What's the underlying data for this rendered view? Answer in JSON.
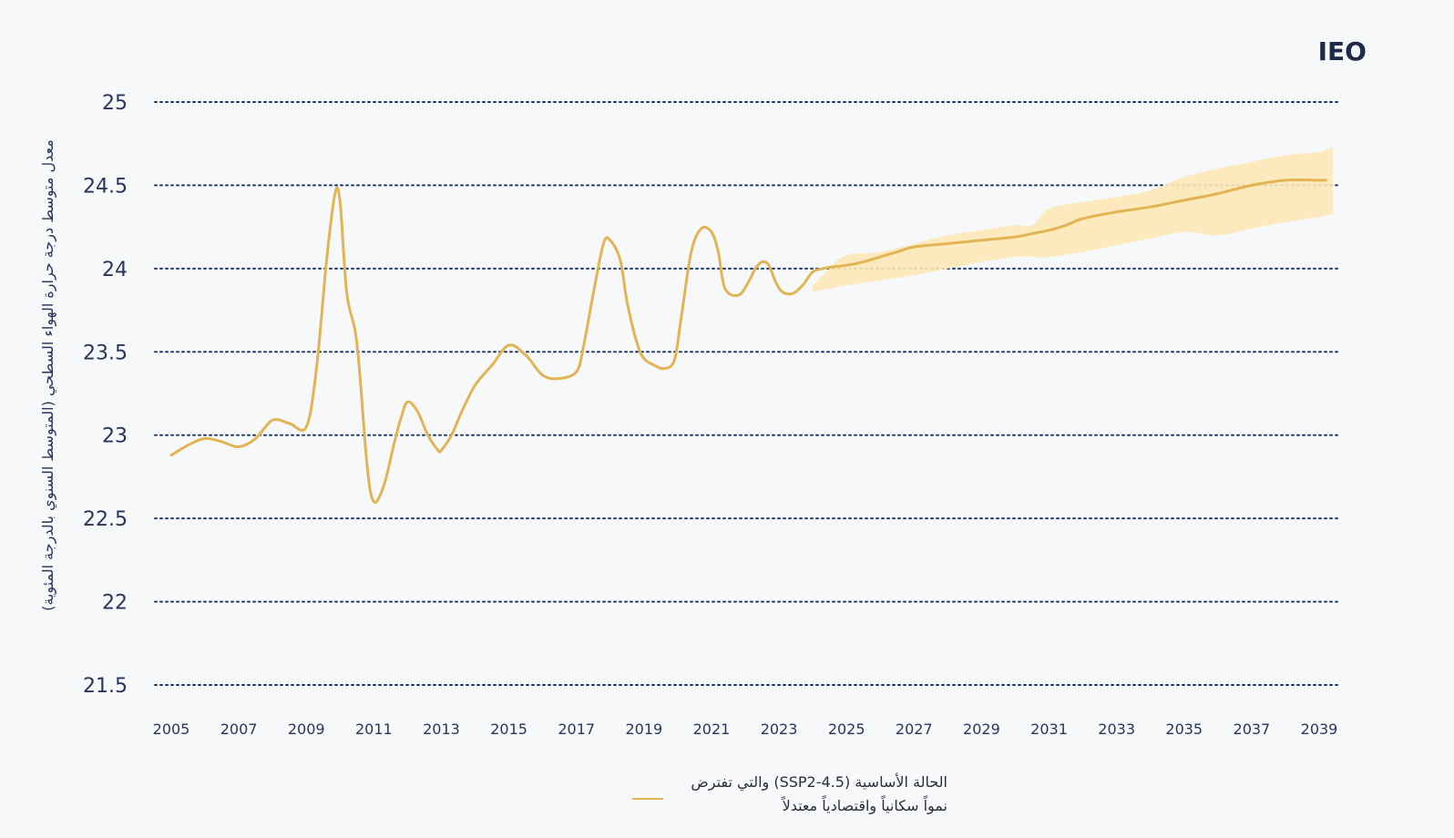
{
  "brand": "IEO",
  "legend": {
    "line1": "الحالة الأساسية (SSP2-4.5) والتي تفترض",
    "line2": "نمواً سكانياً واقتصادياً معتدلاً"
  },
  "colors": {
    "line": "#e2b453",
    "band": "#fde7b6",
    "grid": "#1d3a6e",
    "tick_text": "#27365a",
    "background": "#f6f8fa"
  },
  "chart_data": {
    "type": "line",
    "title": "",
    "xlabel": "",
    "ylabel": "معدل متوسط درجة حرارة الهواء السطحي (المتوسط السنوي بالدرجة المئوية)",
    "xlim": [
      2004.8,
      2039.5
    ],
    "ylim": [
      21.5,
      25
    ],
    "yticks": [
      21.5,
      22,
      22.5,
      23,
      23.5,
      24,
      24.5,
      25
    ],
    "ytick_labels": [
      "21.5",
      "22",
      "22.5",
      "23",
      "23.5",
      "24",
      "24.5",
      "25"
    ],
    "xticks": [
      2005,
      2007,
      2009,
      2011,
      2013,
      2015,
      2017,
      2019,
      2021,
      2023,
      2025,
      2027,
      2029,
      2031,
      2033,
      2035,
      2037,
      2039
    ],
    "xtick_labels": [
      "2005",
      "2007",
      "2009",
      "2011",
      "2013",
      "2015",
      "2017",
      "2019",
      "2021",
      "2023",
      "2025",
      "2027",
      "2029",
      "2031",
      "2033",
      "2035",
      "2037",
      "2039"
    ],
    "grid": "horizontal dotted",
    "legend_position": "bottom",
    "series": [
      {
        "name": "الحالة الأساسية (SSP2-4.5) والتي تفترض نمواً سكانياً واقتصادياً معتدلاً",
        "x": [
          2005,
          2005.5,
          2006,
          2006.5,
          2007,
          2007.5,
          2008,
          2008.5,
          2009,
          2009.3,
          2009.6,
          2009.85,
          2010,
          2010.2,
          2010.5,
          2010.8,
          2011,
          2011.3,
          2011.6,
          2011.8,
          2012,
          2012.3,
          2012.6,
          2012.9,
          2013,
          2013.3,
          2013.6,
          2014,
          2014.5,
          2015,
          2015.5,
          2016,
          2016.5,
          2017,
          2017.2,
          2017.5,
          2017.8,
          2018,
          2018.3,
          2018.5,
          2018.8,
          2019,
          2019.3,
          2019.6,
          2019.9,
          2020.1,
          2020.4,
          2020.7,
          2021,
          2021.2,
          2021.4,
          2021.8,
          2022.1,
          2022.3,
          2022.5,
          2022.7,
          2022.9,
          2023.1,
          2023.4,
          2023.7,
          2024,
          2024.3,
          2024.6,
          2025,
          2025.5,
          2026,
          2026.5,
          2027,
          2028,
          2029,
          2030,
          2030.5,
          2031,
          2031.5,
          2032,
          2033,
          2034,
          2035,
          2036,
          2037,
          2038,
          2039,
          2039.2
        ],
        "y": [
          22.88,
          22.94,
          22.98,
          22.96,
          22.93,
          22.98,
          23.09,
          23.07,
          23.05,
          23.4,
          24.05,
          24.45,
          24.4,
          23.85,
          23.55,
          22.82,
          22.6,
          22.7,
          22.95,
          23.1,
          23.2,
          23.14,
          23.0,
          22.91,
          22.91,
          23.0,
          23.14,
          23.3,
          23.42,
          23.54,
          23.48,
          23.36,
          23.34,
          23.38,
          23.52,
          23.85,
          24.15,
          24.17,
          24.05,
          23.8,
          23.55,
          23.46,
          23.42,
          23.4,
          23.45,
          23.7,
          24.1,
          24.24,
          24.22,
          24.1,
          23.88,
          23.84,
          23.92,
          24.0,
          24.04,
          24.02,
          23.92,
          23.86,
          23.85,
          23.9,
          23.98,
          24.0,
          24.01,
          24.02,
          24.04,
          24.07,
          24.1,
          24.13,
          24.15,
          24.17,
          24.19,
          24.21,
          24.23,
          24.26,
          24.3,
          24.34,
          24.37,
          24.41,
          24.45,
          24.5,
          24.53,
          24.53,
          24.53
        ]
      }
    ],
    "band": {
      "x": [
        2024,
        2024.5,
        2025,
        2026,
        2027,
        2028,
        2029,
        2030,
        2030.5,
        2031,
        2032,
        2033,
        2034,
        2035,
        2036,
        2037,
        2038,
        2039,
        2039.4
      ],
      "upper": [
        23.9,
        24.0,
        24.08,
        24.1,
        24.15,
        24.2,
        24.23,
        24.26,
        24.26,
        24.36,
        24.4,
        24.43,
        24.47,
        24.55,
        24.6,
        24.64,
        24.68,
        24.7,
        24.73
      ],
      "lower": [
        23.86,
        23.88,
        23.9,
        23.93,
        23.96,
        24.0,
        24.04,
        24.07,
        24.07,
        24.07,
        24.1,
        24.14,
        24.18,
        24.22,
        24.2,
        24.24,
        24.28,
        24.31,
        24.33
      ]
    }
  }
}
